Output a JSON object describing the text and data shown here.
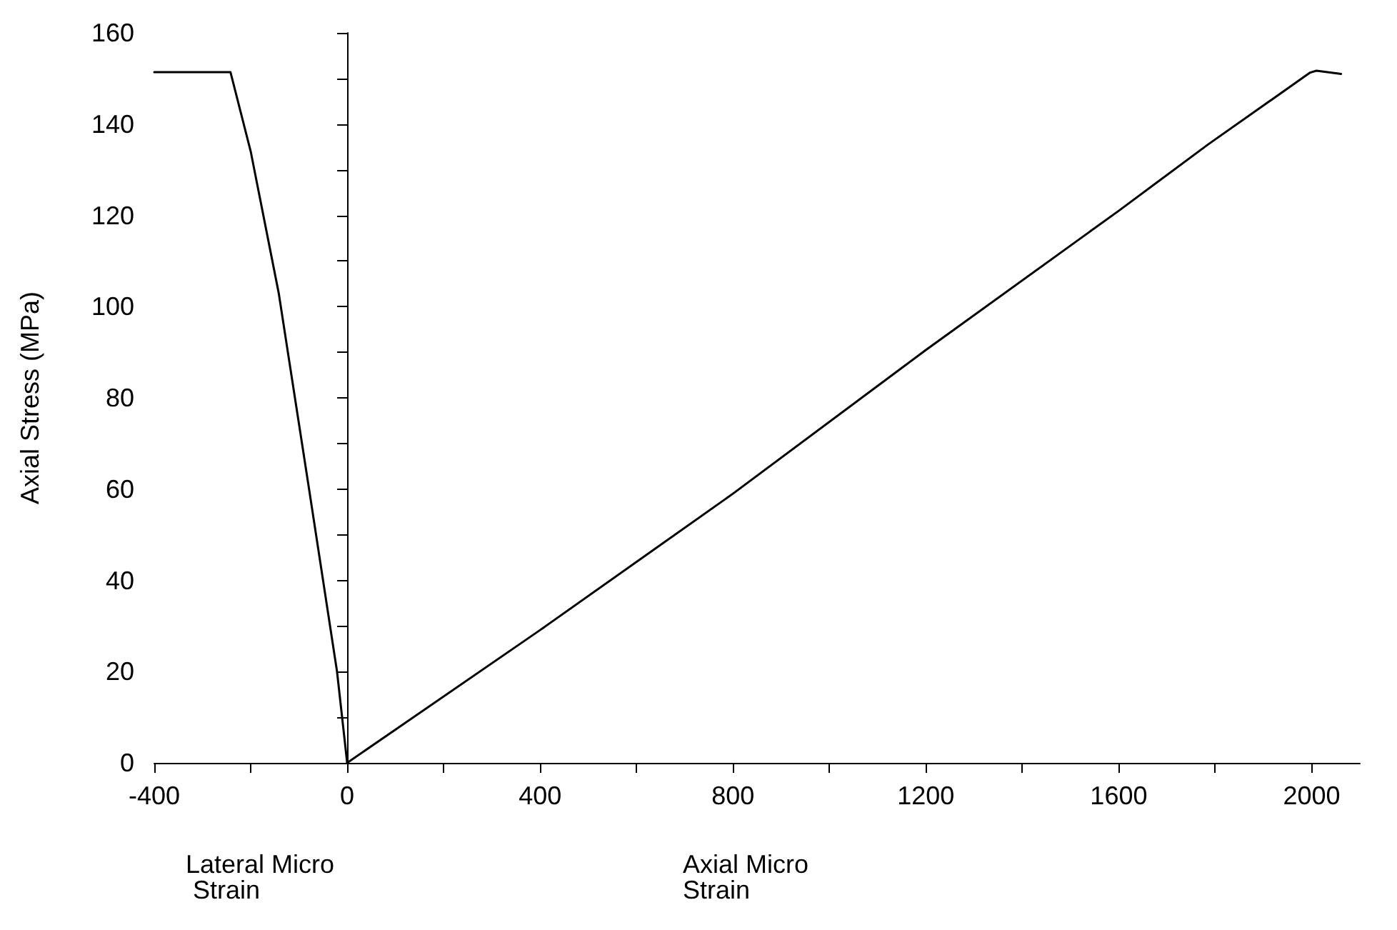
{
  "chart_data": {
    "type": "line",
    "xlabel": "Axial Micro Strain",
    "ylabel": "Axial Stress (MPa)",
    "annotations": [
      "Lateral Micro Strain"
    ],
    "series": [
      {
        "color": "#000000",
        "x": [
          0,
          -21,
          -79,
          -142,
          -200,
          -242,
          -400
        ],
        "values": [
          0,
          20,
          60,
          103,
          134,
          151.4,
          151.4
        ]
      },
      {
        "color": "#000000",
        "x": [
          0,
          400,
          800,
          1200,
          1600,
          1786,
          1997,
          2010,
          2061
        ],
        "values": [
          0,
          29.1,
          59,
          90.5,
          121,
          135.6,
          151.3,
          151.7,
          151
        ]
      }
    ],
    "xlim": [
      -400,
      2100
    ],
    "xticks": [
      -400,
      {
        "value": -200,
        "label": null
      },
      0,
      {
        "value": 200,
        "label": null
      },
      400,
      {
        "value": 600,
        "label": null
      },
      800,
      {
        "value": 1000,
        "label": null
      },
      1200,
      {
        "value": 1400,
        "label": null
      },
      1600,
      {
        "value": 1800,
        "label": null
      },
      2000
    ],
    "ylim": [
      0,
      160
    ],
    "yticks": [
      0,
      {
        "value": 10,
        "label": null
      },
      20,
      {
        "value": 30,
        "label": null
      },
      40,
      {
        "value": 50,
        "label": null
      },
      60,
      {
        "value": 70,
        "label": null
      },
      80,
      {
        "value": 90,
        "label": null
      },
      100,
      {
        "value": 110,
        "label": null
      },
      120,
      {
        "value": 130,
        "label": null
      },
      140,
      {
        "value": 150,
        "label": null
      },
      160
    ],
    "marker": "none",
    "line_style": "solid"
  }
}
